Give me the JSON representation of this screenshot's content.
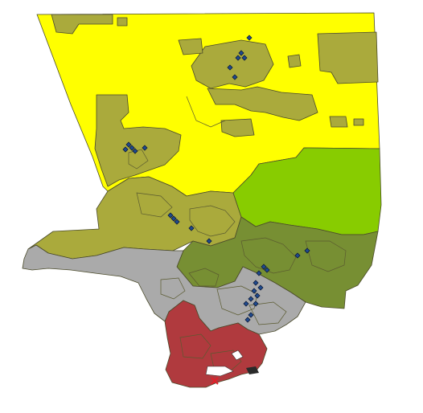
{
  "map": {
    "type": "choropleth",
    "colors": {
      "yellow": "#ffff00",
      "olive": "#aaaa3c",
      "lime": "#88cc00",
      "green": "#778f33",
      "gray": "#aaaaaa",
      "red": "#b03a3e",
      "marker": "#1f4a8f",
      "marker_outline": "#0d1b3a",
      "border": "#4a4a2a"
    },
    "regions": [
      {
        "id": "north",
        "color": "yellow"
      },
      {
        "id": "central-west",
        "color": "olive"
      },
      {
        "id": "east",
        "color": "lime"
      },
      {
        "id": "east-valley",
        "color": "green"
      },
      {
        "id": "south-central",
        "color": "gray"
      },
      {
        "id": "harbor",
        "color": "red"
      }
    ],
    "marker_icon": "diamond-marker"
  }
}
